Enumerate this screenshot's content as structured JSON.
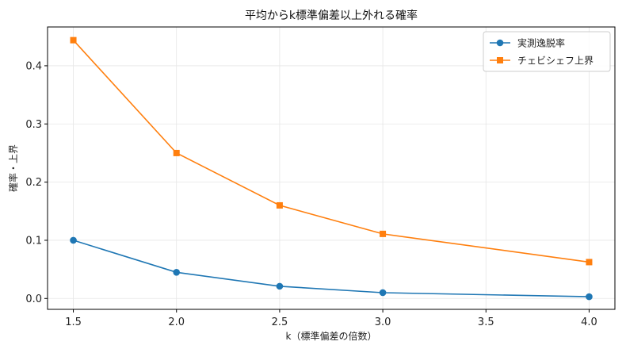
{
  "chart_data": {
    "type": "line",
    "title": "平均からk標準偏差以上外れる確率",
    "xlabel": "k（標準偏差の倍数）",
    "ylabel": "確率・上界",
    "x": [
      1.5,
      2.0,
      2.5,
      3.0,
      4.0
    ],
    "xlim": [
      1.375,
      4.125
    ],
    "ylim": [
      -0.0187,
      0.4667
    ],
    "xticks": [
      "1.5",
      "2.0",
      "2.5",
      "3.0",
      "3.5",
      "4.0"
    ],
    "yticks": [
      "0.0",
      "0.1",
      "0.2",
      "0.3",
      "0.4"
    ],
    "grid": true,
    "legend_position": "top-right",
    "series": [
      {
        "name": "実測逸脱率",
        "values": [
          0.1,
          0.045,
          0.021,
          0.01,
          0.003
        ],
        "color": "#1f77b4",
        "marker": "circle"
      },
      {
        "name": "チェビシェフ上界",
        "values": [
          0.444,
          0.25,
          0.16,
          0.111,
          0.0625
        ],
        "color": "#ff7f0e",
        "marker": "square"
      }
    ]
  }
}
